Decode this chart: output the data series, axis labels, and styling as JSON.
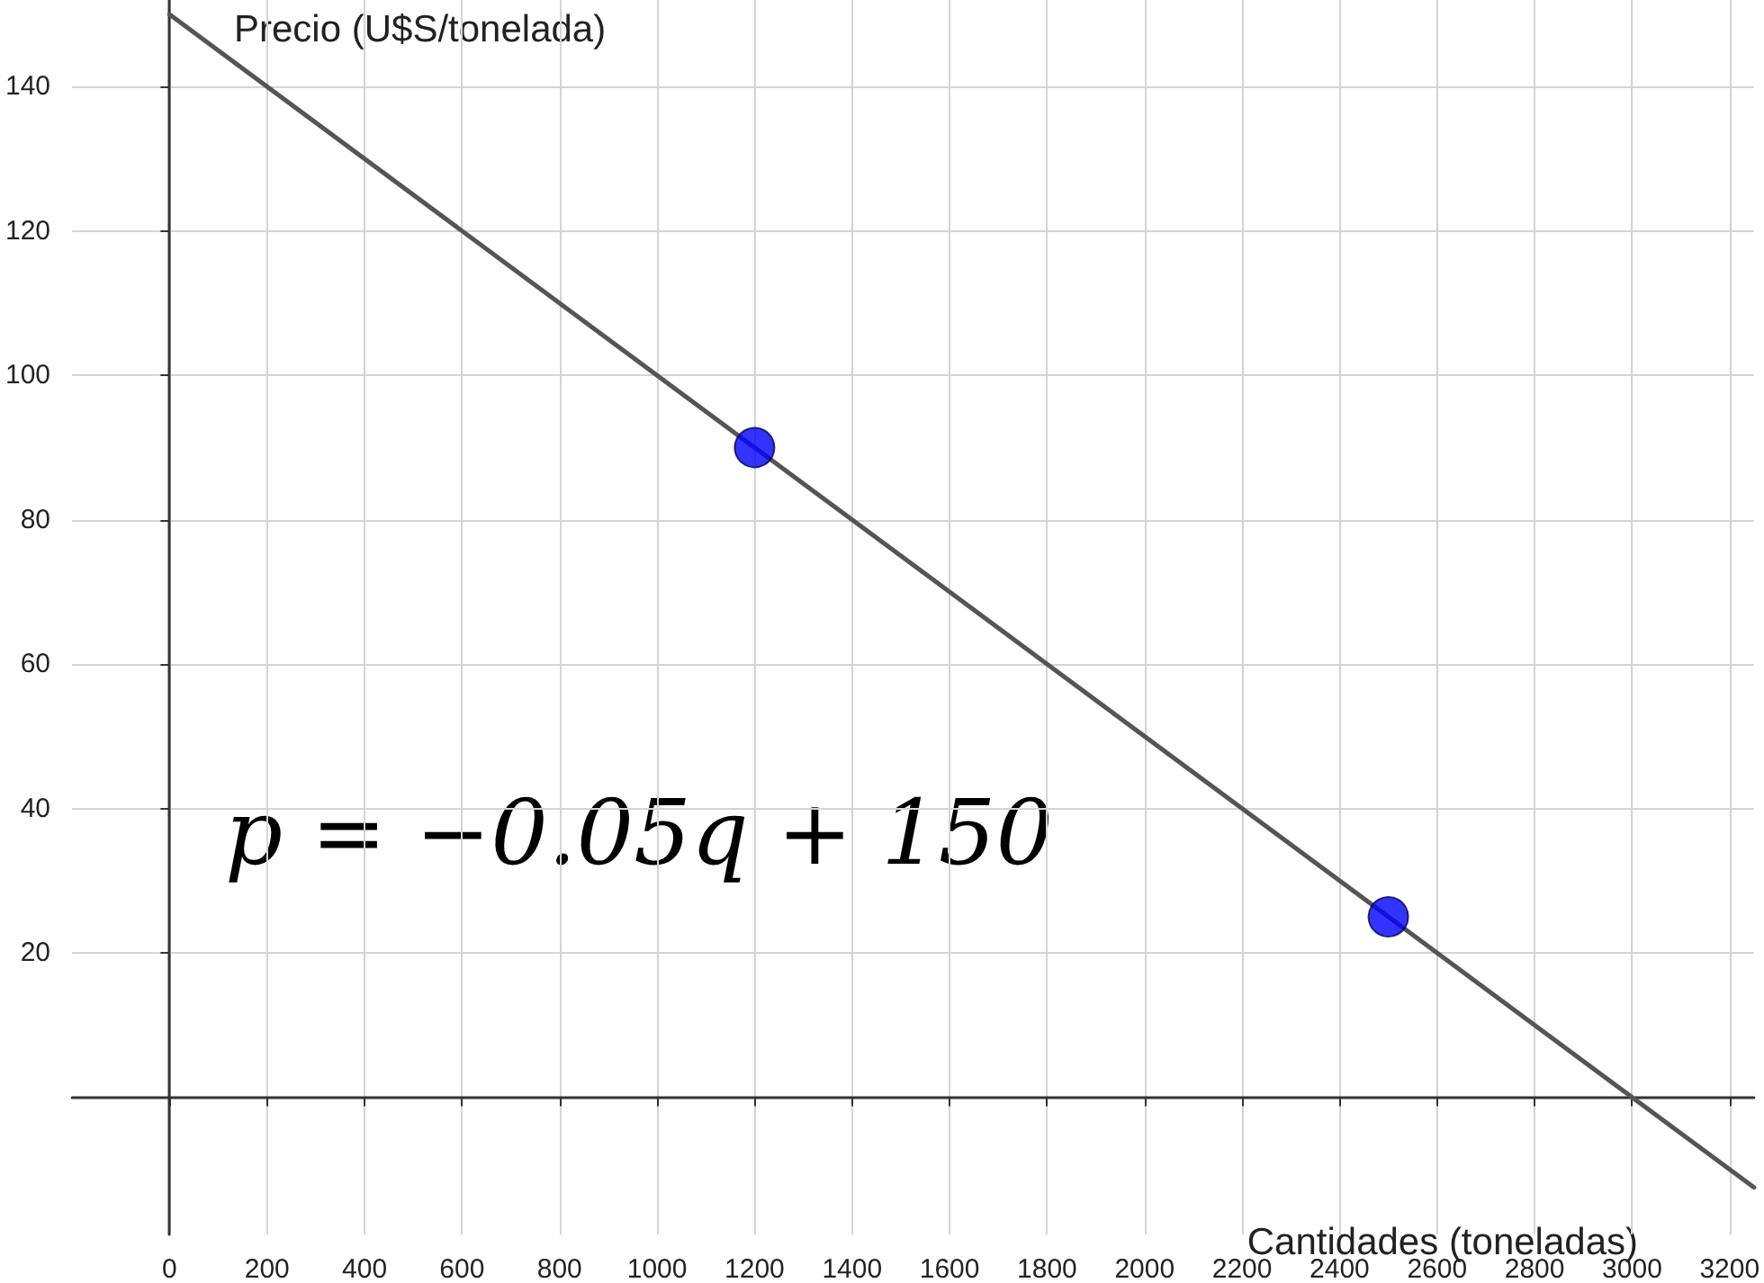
{
  "chart_data": {
    "type": "line",
    "xlabel": "Cantidades (toneladas)",
    "ylabel": "Precio (U$S/tonelada)",
    "annotations": [
      "p = −0.05q + 150"
    ],
    "series": [
      {
        "color": "#555555",
        "x": [
          0,
          3250
        ],
        "values": [
          150,
          -12.5
        ],
        "marker": "none"
      },
      {
        "type": "scatter",
        "color": "#0000ff",
        "x": [
          1200,
          2500
        ],
        "values": [
          90,
          25
        ],
        "marker": "circle"
      }
    ],
    "xlim": [
      -200,
      3250
    ],
    "ylim": [
      -19,
      152
    ],
    "xticks": [
      0,
      200,
      400,
      600,
      800,
      1000,
      1200,
      1400,
      1600,
      1800,
      2000,
      2200,
      2400,
      2600,
      2800,
      3000,
      3200
    ],
    "yticks": [
      20,
      40,
      60,
      80,
      100,
      120,
      140
    ],
    "grid": true
  }
}
